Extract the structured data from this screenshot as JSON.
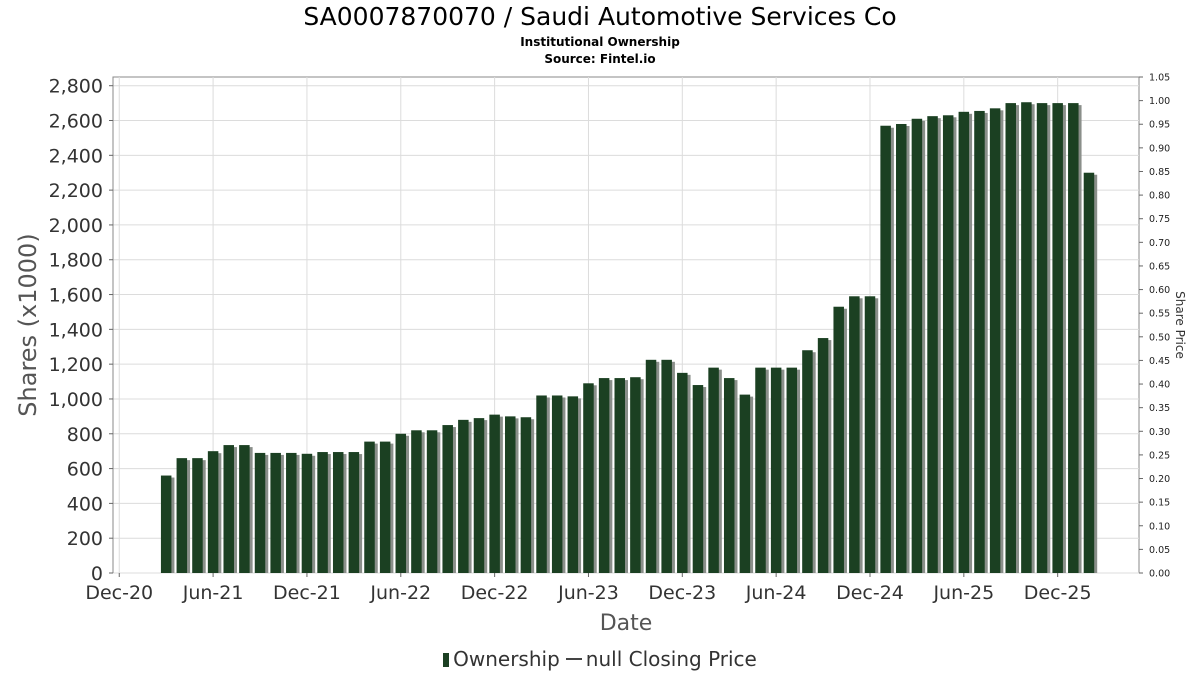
{
  "chart_data": {
    "type": "bar",
    "title": "SA0007870070 / Saudi Automotive Services Co",
    "subtitle": "Institutional Ownership",
    "source": "Source: Fintel.io",
    "xlabel": "Date",
    "ylabel": "Shares (x1000)",
    "y2label": "Share Price",
    "ylim": [
      0,
      2850
    ],
    "y2lim": [
      0,
      1.05
    ],
    "y_ticks": [
      "0",
      "200",
      "400",
      "600",
      "800",
      "1,000",
      "1,200",
      "1,400",
      "1,600",
      "1,800",
      "2,000",
      "2,200",
      "2,400",
      "2,600",
      "2,800"
    ],
    "y_tick_values": [
      0,
      200,
      400,
      600,
      800,
      1000,
      1200,
      1400,
      1600,
      1800,
      2000,
      2200,
      2400,
      2600,
      2800
    ],
    "y2_ticks": [
      "0.00",
      "0.05",
      "0.10",
      "0.15",
      "0.20",
      "0.25",
      "0.30",
      "0.35",
      "0.40",
      "0.45",
      "0.50",
      "0.55",
      "0.60",
      "0.65",
      "0.70",
      "0.75",
      "0.80",
      "0.85",
      "0.90",
      "0.95",
      "1.00",
      "1.05"
    ],
    "y2_tick_values": [
      0,
      0.05,
      0.1,
      0.15,
      0.2,
      0.25,
      0.3,
      0.35,
      0.4,
      0.45,
      0.5,
      0.55,
      0.6,
      0.65,
      0.7,
      0.75,
      0.8,
      0.85,
      0.9,
      0.95,
      1.0,
      1.05
    ],
    "x_ticks": [
      "Dec-20",
      "Jun-21",
      "Dec-21",
      "Jun-22",
      "Dec-22",
      "Jun-23",
      "Dec-23",
      "Jun-24",
      "Dec-24",
      "Jun-25",
      "Dec-25"
    ],
    "x_tick_months": [
      0,
      6,
      12,
      18,
      24,
      30,
      36,
      42,
      48,
      54,
      60
    ],
    "x_range_months": [
      -0.4,
      65.2
    ],
    "series": [
      {
        "name": "Ownership",
        "color": "#1b4022",
        "months": [
          3,
          4,
          5,
          6,
          7,
          8,
          9,
          10,
          11,
          12,
          13,
          14,
          15,
          16,
          17,
          18,
          19,
          20,
          21,
          22,
          23,
          24,
          25,
          26,
          27,
          28,
          29,
          30,
          31,
          32,
          33,
          34,
          35,
          36,
          37,
          38,
          39,
          40,
          41,
          42,
          43,
          44,
          45,
          46,
          47,
          48,
          49,
          50,
          51,
          52,
          53,
          54,
          55,
          56,
          57,
          58,
          59,
          60,
          61,
          62
        ],
        "values": [
          560,
          660,
          660,
          700,
          735,
          735,
          690,
          690,
          690,
          685,
          695,
          695,
          695,
          755,
          755,
          800,
          820,
          820,
          850,
          880,
          890,
          910,
          900,
          895,
          1020,
          1020,
          1015,
          1090,
          1120,
          1120,
          1125,
          1225,
          1225,
          1150,
          1080,
          1180,
          1120,
          1025,
          1180,
          1180,
          1180,
          1280,
          1350,
          1530,
          1590,
          1590,
          2570,
          2580,
          2610,
          2625,
          2630,
          2650,
          2655,
          2670,
          2700,
          2705,
          2700,
          2700,
          2700,
          2300
        ]
      }
    ],
    "legend": {
      "ownership_label": "Ownership",
      "price_label": "null Closing Price"
    }
  }
}
